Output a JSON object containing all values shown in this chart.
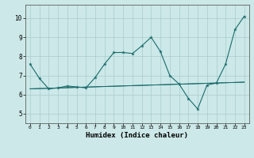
{
  "xlabel": "Humidex (Indice chaleur)",
  "background_color": "#cce8e8",
  "grid_color": "#aacccc",
  "line_color": "#1a6b6b",
  "xlim": [
    -0.5,
    23.5
  ],
  "ylim": [
    4.5,
    10.7
  ],
  "yticks": [
    5,
    6,
    7,
    8,
    9,
    10
  ],
  "xticks": [
    0,
    1,
    2,
    3,
    4,
    5,
    6,
    7,
    8,
    9,
    10,
    11,
    12,
    13,
    14,
    15,
    16,
    17,
    18,
    19,
    20,
    21,
    22,
    23
  ],
  "series1_x": [
    0,
    1,
    2,
    3,
    4,
    5,
    6,
    7,
    8,
    9,
    10,
    11,
    12,
    13,
    14,
    15,
    16,
    17,
    18,
    19,
    20,
    21,
    22,
    23
  ],
  "series1_y": [
    7.6,
    6.85,
    6.3,
    6.35,
    6.45,
    6.4,
    6.35,
    6.9,
    7.6,
    8.2,
    8.2,
    8.15,
    8.55,
    9.0,
    8.25,
    7.0,
    6.55,
    5.8,
    5.25,
    6.5,
    6.6,
    7.6,
    9.4,
    10.1
  ],
  "series2_x": [
    0,
    23
  ],
  "series2_y": [
    6.3,
    6.65
  ],
  "series3_x": [
    0,
    23
  ],
  "series3_y": [
    6.3,
    6.65
  ]
}
